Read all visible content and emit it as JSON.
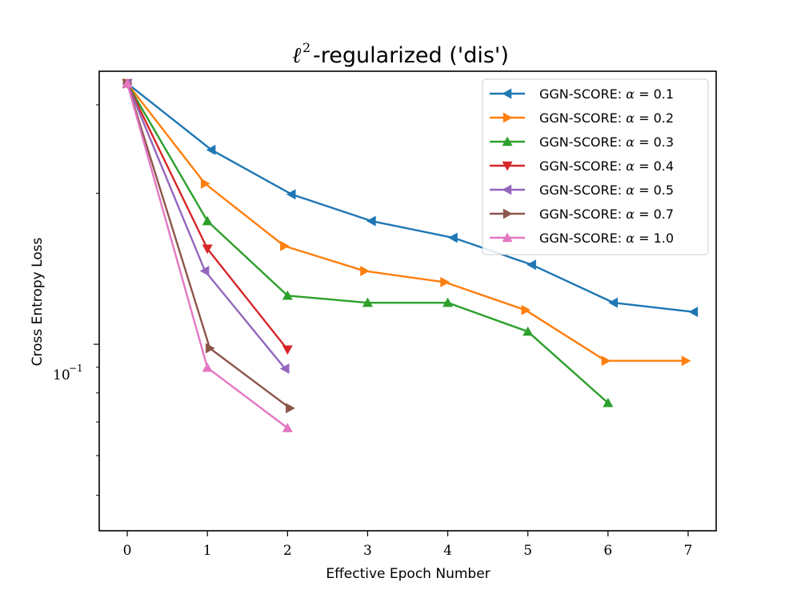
{
  "chart_data": {
    "type": "line",
    "title": "ℓ2-regularized ('dis')",
    "title_parts": {
      "ell": "ℓ",
      "sup": "2",
      "rest": "-regularized ('dis')"
    },
    "xlabel": "Effective Epoch Number",
    "ylabel": "Cross Entropy Loss",
    "yscale": "log",
    "xlim": [
      -0.35,
      7.35
    ],
    "ylim": [
      0.0425,
      0.35
    ],
    "x_ticks": [
      0,
      1,
      2,
      3,
      4,
      5,
      6,
      7
    ],
    "x_tick_labels": [
      "0",
      "1",
      "2",
      "3",
      "4",
      "5",
      "6",
      "7"
    ],
    "y_major_ticks": [
      0.1
    ],
    "y_tick_label": {
      "base": "10",
      "exp": "−1"
    },
    "y_minor_ticks": [
      0.05,
      0.06,
      0.07,
      0.08,
      0.09,
      0.2,
      0.3
    ],
    "legend_position": "top-right",
    "series": [
      {
        "name": "GGN-SCORE: α = 0.1",
        "label_prefix": "GGN-SCORE: ",
        "alpha": "α",
        "alpha_value": " = 0.1",
        "color": "#1f77b4",
        "marker": "triangle-left",
        "x": [
          0,
          1.05,
          2.05,
          3.05,
          4.07,
          5.05,
          6.07,
          7.07
        ],
        "y": [
          0.331,
          0.244,
          0.199,
          0.176,
          0.163,
          0.144,
          0.121,
          0.116
        ]
      },
      {
        "name": "GGN-SCORE: α = 0.2",
        "label_prefix": "GGN-SCORE: ",
        "alpha": "α",
        "alpha_value": " = 0.2",
        "color": "#ff7f0e",
        "marker": "triangle-right",
        "x": [
          0,
          0.97,
          1.96,
          2.96,
          3.96,
          4.97,
          5.97,
          6.97
        ],
        "y": [
          0.331,
          0.209,
          0.157,
          0.14,
          0.133,
          0.117,
          0.0927,
          0.0927
        ]
      },
      {
        "name": "GGN-SCORE: α = 0.3",
        "label_prefix": "GGN-SCORE: ",
        "alpha": "α",
        "alpha_value": " = 0.3",
        "color": "#2ca02c",
        "marker": "triangle-up",
        "x": [
          0,
          1.0,
          2.0,
          3.0,
          4.0,
          5.0,
          6.0
        ],
        "y": [
          0.331,
          0.176,
          0.125,
          0.121,
          0.121,
          0.106,
          0.0764
        ]
      },
      {
        "name": "GGN-SCORE: α = 0.4",
        "label_prefix": "GGN-SCORE: ",
        "alpha": "α",
        "alpha_value": " = 0.4",
        "color": "#d62728",
        "marker": "triangle-down",
        "x": [
          0,
          1.0,
          2.0
        ],
        "y": [
          0.331,
          0.155,
          0.0976
        ]
      },
      {
        "name": "GGN-SCORE: α = 0.5",
        "label_prefix": "GGN-SCORE: ",
        "alpha": "α",
        "alpha_value": " = 0.5",
        "color": "#9467bd",
        "marker": "triangle-left",
        "x": [
          0,
          0.97,
          1.97
        ],
        "y": [
          0.331,
          0.14,
          0.0894
        ]
      },
      {
        "name": "GGN-SCORE: α = 0.7",
        "label_prefix": "GGN-SCORE: ",
        "alpha": "α",
        "alpha_value": " = 0.7",
        "color": "#8c564b",
        "marker": "triangle-right",
        "x": [
          0,
          1.03,
          2.03
        ],
        "y": [
          0.331,
          0.0982,
          0.0746
        ]
      },
      {
        "name": "GGN-SCORE: α = 1.0",
        "label_prefix": "GGN-SCORE: ",
        "alpha": "α",
        "alpha_value": " = 1.0",
        "color": "#e377c2",
        "marker": "triangle-up",
        "x": [
          0,
          1.0,
          2.0
        ],
        "y": [
          0.331,
          0.0898,
          0.0681
        ]
      }
    ]
  }
}
